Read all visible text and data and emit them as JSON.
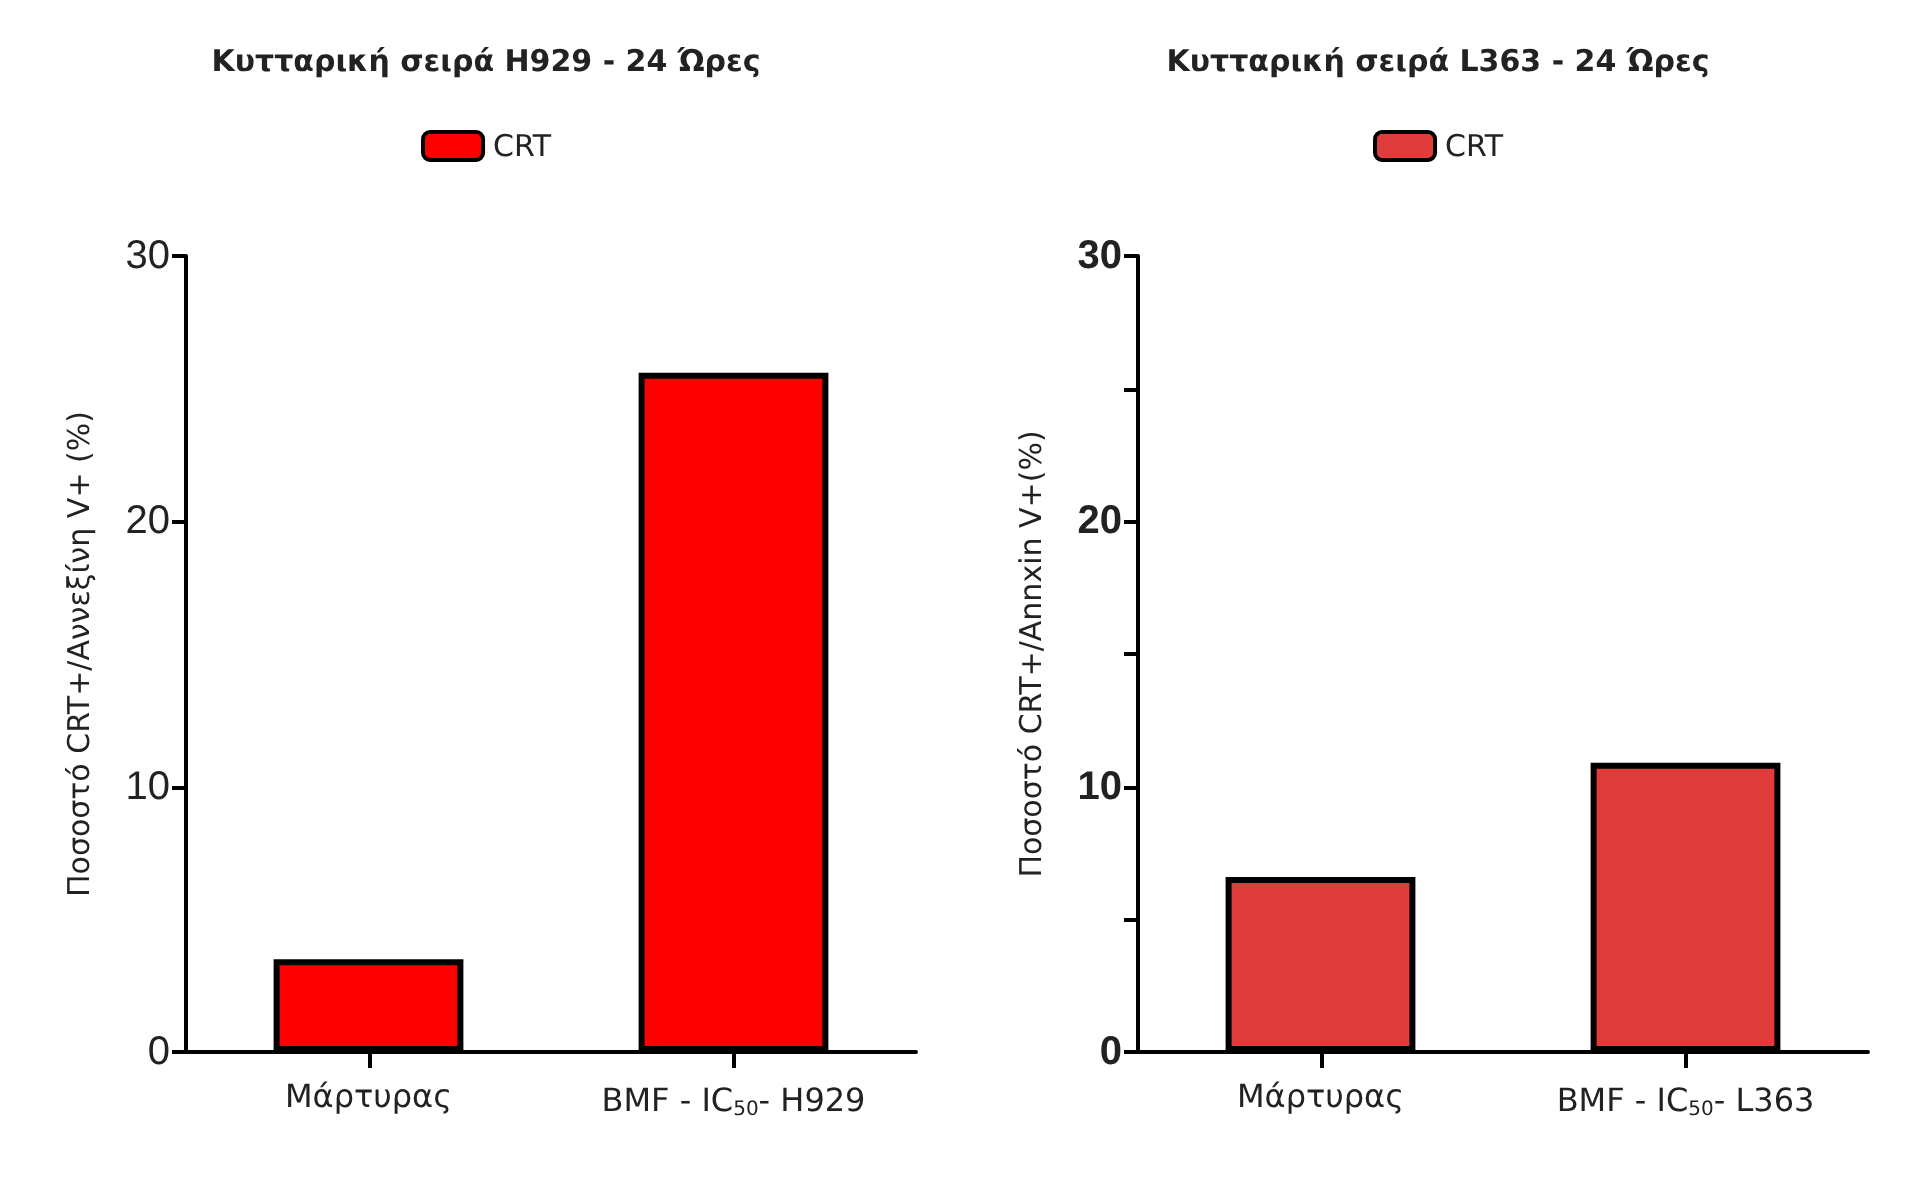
{
  "chart_data": [
    {
      "type": "bar",
      "title": "Κυτταρική σειρά H929 - 24 Ώρες",
      "ylabel": "Ποσοστό CRT+/Αννεξίνη V+ (%)",
      "categories": [
        "Μάρτυρας",
        "BMF - IC$_{50}$- H929"
      ],
      "series": [
        {
          "name": "CRT",
          "color": "#ff0000",
          "values": [
            3.5,
            25.6
          ]
        }
      ],
      "ylim": [
        0,
        30
      ],
      "yticks": [
        0,
        10,
        20,
        30
      ],
      "legend": "top"
    },
    {
      "type": "bar",
      "title": "Κυτταρική σειρά L363 - 24 Ώρες",
      "ylabel": "Ποσοστό CRT+/Annxin V+(%)",
      "categories": [
        "Μάρτυρας",
        "BMF - IC$_{50}$- L363"
      ],
      "series": [
        {
          "name": "CRT",
          "color": "#e03c3c",
          "values": [
            6.6,
            10.9
          ]
        }
      ],
      "ylim": [
        0,
        30
      ],
      "yticks": [
        0,
        {
          "value": 5,
          "label": null
        },
        10,
        {
          "value": 15,
          "label": null
        },
        20,
        {
          "value": 25,
          "label": null
        },
        30
      ],
      "legend": "top"
    }
  ]
}
